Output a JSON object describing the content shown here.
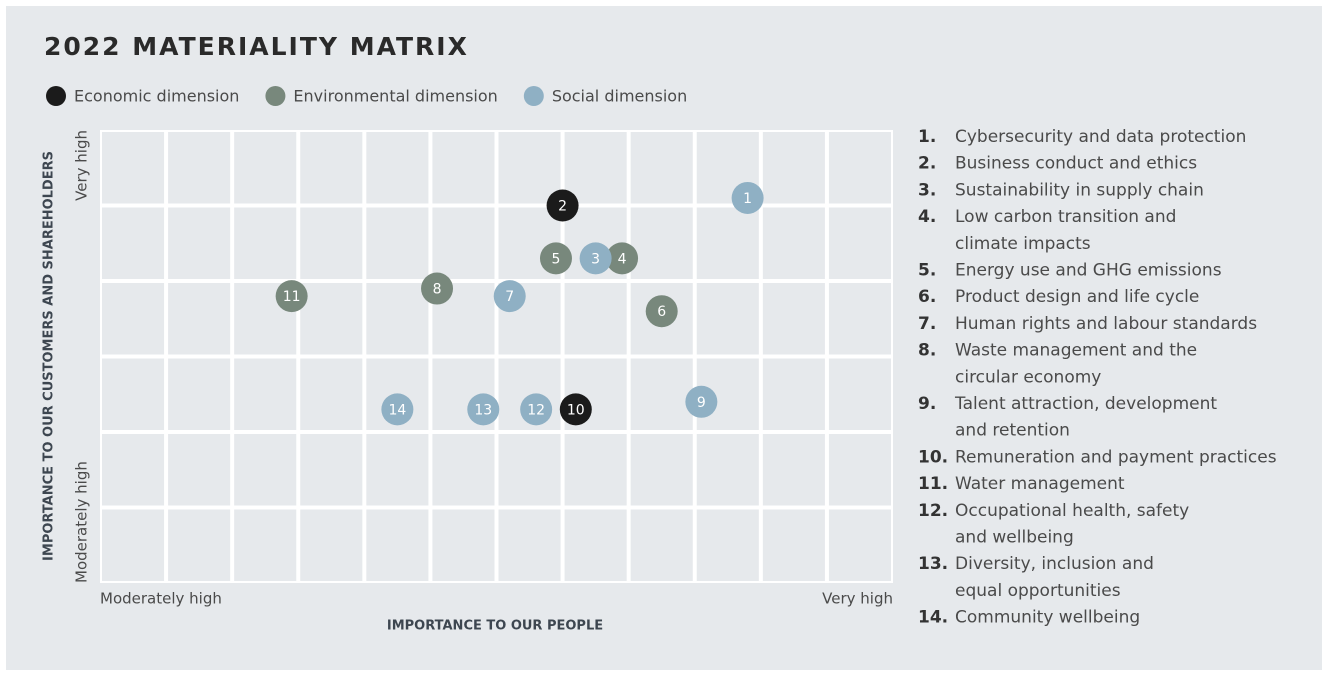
{
  "chart_data": {
    "type": "scatter",
    "title": "2022 MATERIALITY MATRIX",
    "x_label": "IMPORTANCE TO OUR PEOPLE",
    "y_label": "IMPORTANCE TO OUR CUSTOMERS AND SHAREHOLDERS",
    "xlim": [
      0,
      12
    ],
    "ylim": [
      0,
      6
    ],
    "xticks": [
      {
        "value": 0,
        "label": "Moderately high"
      },
      {
        "value": 12,
        "label": "Very high"
      }
    ],
    "yticks": [
      {
        "value": 0,
        "label": "Moderately high"
      },
      {
        "value": 6,
        "label": "Very high"
      }
    ],
    "grid": true,
    "series": [
      {
        "name": "Economic dimension",
        "color": "#1b1b1b",
        "x": [
          7.0,
          7.2
        ],
        "values": [
          5.0,
          2.3
        ],
        "labels": [
          "2",
          "10"
        ]
      },
      {
        "name": "Environmental dimension",
        "color": "#78887c",
        "x": [
          6.9,
          7.9,
          8.5,
          5.1,
          2.9
        ],
        "values": [
          4.3,
          4.3,
          3.6,
          3.9,
          3.8
        ],
        "labels": [
          "5",
          "4",
          "6",
          "8",
          "11"
        ]
      },
      {
        "name": "Social dimension",
        "color": "#8fb0c4",
        "x": [
          9.8,
          7.5,
          6.2,
          9.1,
          6.6,
          5.8,
          4.5
        ],
        "values": [
          5.1,
          4.3,
          3.8,
          2.4,
          2.3,
          2.3,
          2.3
        ],
        "labels": [
          "1",
          "3",
          "7",
          "9",
          "12",
          "13",
          "14"
        ]
      }
    ],
    "key": [
      {
        "num": "1.",
        "lines": [
          "Cybersecurity and data protection"
        ]
      },
      {
        "num": "2.",
        "lines": [
          "Business conduct and ethics"
        ]
      },
      {
        "num": "3.",
        "lines": [
          "Sustainability in supply chain"
        ]
      },
      {
        "num": "4.",
        "lines": [
          "Low carbon transition and",
          "climate impacts"
        ]
      },
      {
        "num": "5.",
        "lines": [
          "Energy use and GHG emissions"
        ]
      },
      {
        "num": "6.",
        "lines": [
          "Product design and life cycle"
        ]
      },
      {
        "num": "7.",
        "lines": [
          "Human rights and labour standards"
        ]
      },
      {
        "num": "8.",
        "lines": [
          "Waste management and the",
          "circular economy"
        ]
      },
      {
        "num": "9.",
        "lines": [
          "Talent attraction, development",
          "and retention"
        ]
      },
      {
        "num": "10.",
        "lines": [
          "Remuneration and payment practices"
        ]
      },
      {
        "num": "11.",
        "lines": [
          "Water management"
        ]
      },
      {
        "num": "12.",
        "lines": [
          "Occupational health, safety",
          "and wellbeing"
        ]
      },
      {
        "num": "13.",
        "lines": [
          "Diversity, inclusion and",
          "equal opportunities"
        ]
      },
      {
        "num": "14.",
        "lines": [
          "Community wellbeing"
        ]
      }
    ]
  }
}
